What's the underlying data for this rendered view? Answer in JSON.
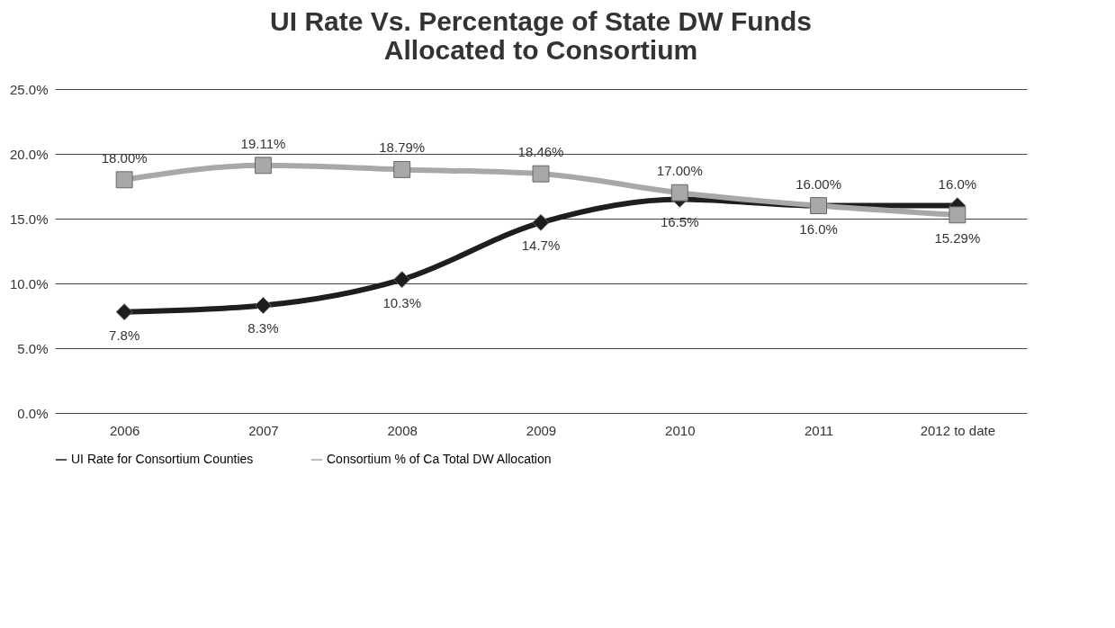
{
  "chart_data": {
    "type": "line",
    "title": "UI Rate Vs. Percentage of State DW Funds\nAllocated to Consortium",
    "categories": [
      "2006",
      "2007",
      "2008",
      "2009",
      "2010",
      "2011",
      "2012 to date"
    ],
    "series": [
      {
        "name": "UI Rate for Consortium Counties",
        "color": "#1e1e1e",
        "marker": "diamond",
        "values": [
          7.8,
          8.3,
          10.3,
          14.7,
          16.5,
          16.0,
          16.0
        ],
        "value_labels": [
          "7.8%",
          "8.3%",
          "10.3%",
          "14.7%",
          "16.5%",
          "16.0%",
          "16.0%"
        ]
      },
      {
        "name": "Consortium  % of Ca Total DW Allocation",
        "color": "#a8a8a8",
        "marker": "square",
        "values": [
          18.0,
          19.11,
          18.79,
          18.46,
          17.0,
          16.0,
          15.29
        ],
        "value_labels": [
          "18.00%",
          "19.11%",
          "18.79%",
          "18.46%",
          "17.00%",
          "16.00%",
          "15.29%"
        ]
      }
    ],
    "ylim": [
      0,
      25
    ],
    "yticks": [
      {
        "value": 0,
        "label": "0.0%"
      },
      {
        "value": 5,
        "label": "5.0%"
      },
      {
        "value": 10,
        "label": "10.0%"
      },
      {
        "value": 15,
        "label": "15.0%"
      },
      {
        "value": 20,
        "label": "20.0%"
      },
      {
        "value": 25,
        "label": "25.0%"
      }
    ],
    "grid": "y",
    "legend": "bottom"
  }
}
